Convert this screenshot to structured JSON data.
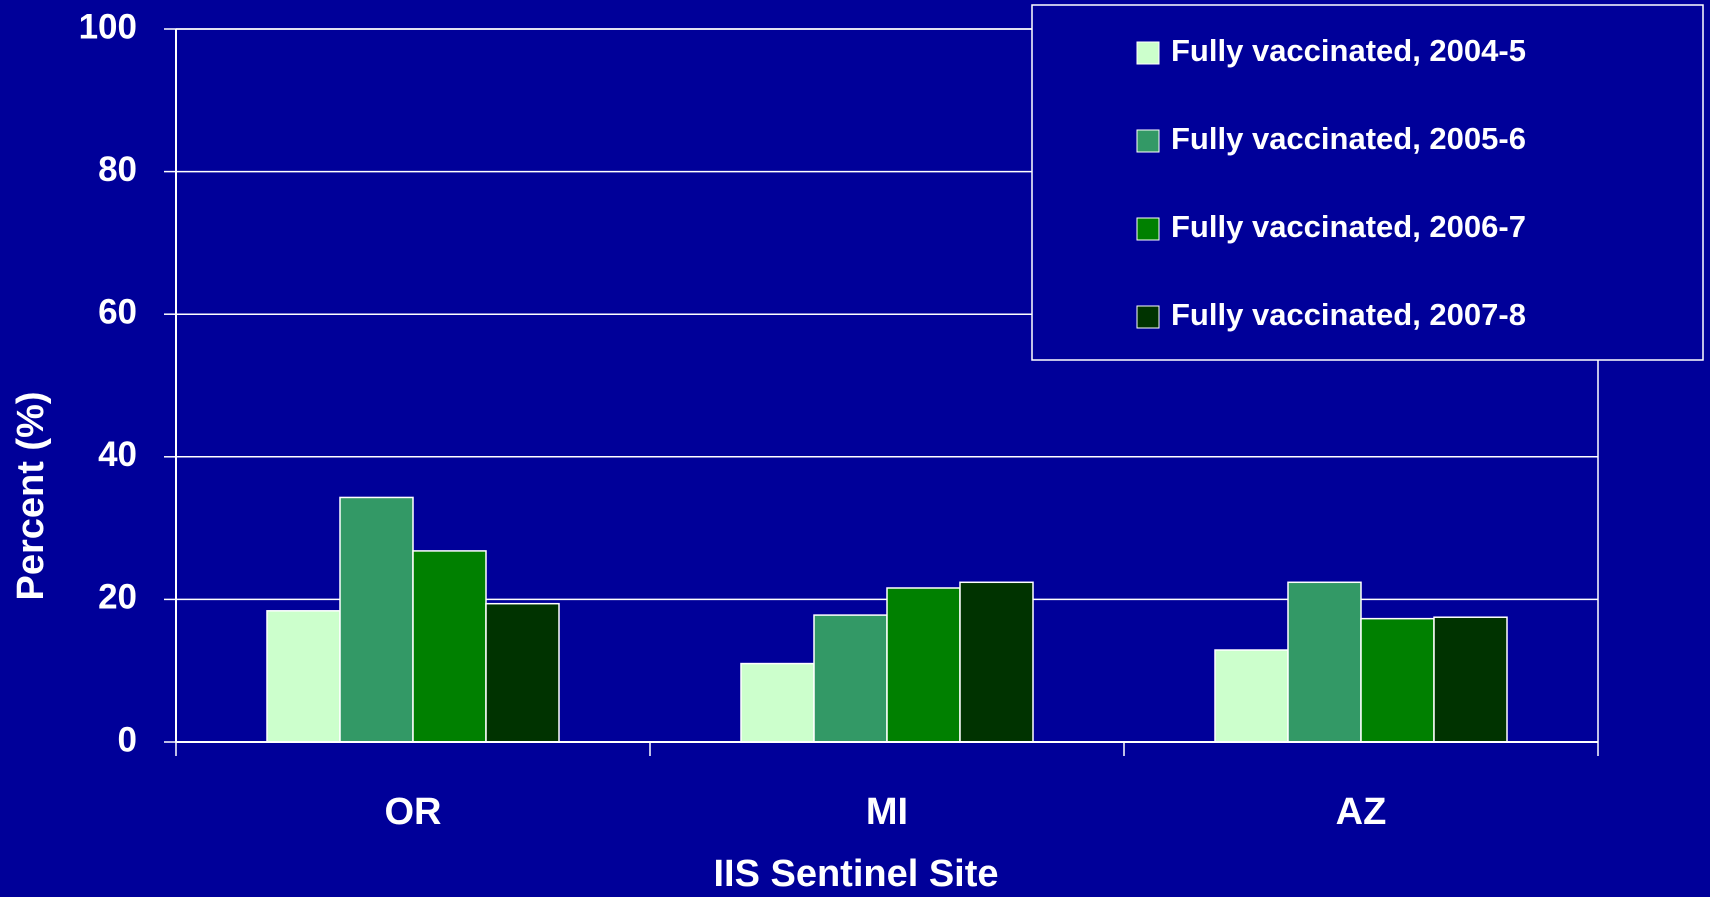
{
  "chart_data": {
    "type": "bar",
    "categories": [
      "OR",
      "MI",
      "AZ"
    ],
    "series": [
      {
        "name": "Fully vaccinated, 2004-5",
        "color": "#ccffcc",
        "values": [
          18.4,
          11.0,
          12.9
        ]
      },
      {
        "name": "Fully vaccinated, 2005-6",
        "color": "#339966",
        "values": [
          34.3,
          17.8,
          22.4
        ]
      },
      {
        "name": "Fully vaccinated, 2006-7",
        "color": "#008000",
        "values": [
          26.8,
          21.6,
          17.3
        ]
      },
      {
        "name": "Fully vaccinated, 2007-8",
        "color": "#003300",
        "values": [
          19.4,
          22.4,
          17.5
        ]
      }
    ],
    "ylim": [
      0,
      100
    ],
    "yticks": [
      0,
      20,
      40,
      60,
      80,
      100
    ],
    "grid": true,
    "xlabel": "IIS Sentinel Site",
    "ylabel": "Percent (%)",
    "legend": "upper right"
  }
}
